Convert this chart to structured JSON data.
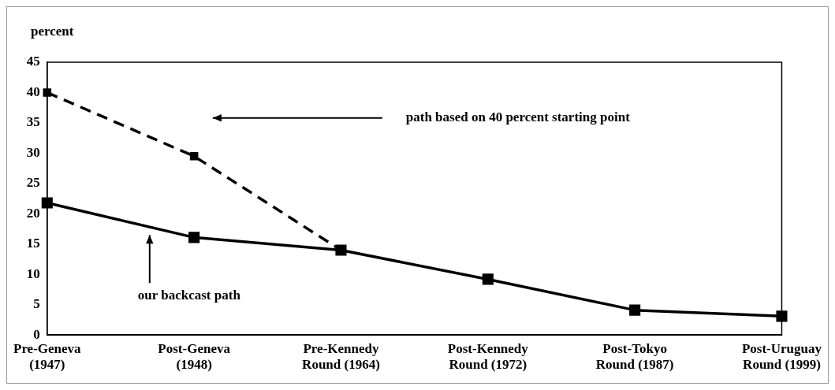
{
  "chart_data": {
    "type": "line",
    "ylabel": "percent",
    "categories": [
      "Pre-Geneva (1947)",
      "Post-Geneva (1948)",
      "Pre-Kennedy Round (1964)",
      "Post-Kennedy Round (1972)",
      "Post-Tokyo Round (1987)",
      "Post-Uruguay Round (1999)"
    ],
    "series": [
      {
        "color": "#000000",
        "values": [
          21.8,
          16.1,
          14.0,
          9.2,
          4.1,
          3.1
        ],
        "line_style": "solid"
      },
      {
        "color": "#000000",
        "values": [
          40,
          29.5,
          14.0,
          null,
          null,
          null
        ],
        "line_style": "dashed"
      }
    ],
    "ylim": [
      0,
      45
    ],
    "yticks": [
      0,
      5,
      10,
      15,
      20,
      25,
      30,
      35,
      40,
      45
    ],
    "grid": false,
    "legend": false,
    "marker": "square",
    "annotations": [
      "path based on 40 percent starting point",
      "our backcast path"
    ]
  }
}
